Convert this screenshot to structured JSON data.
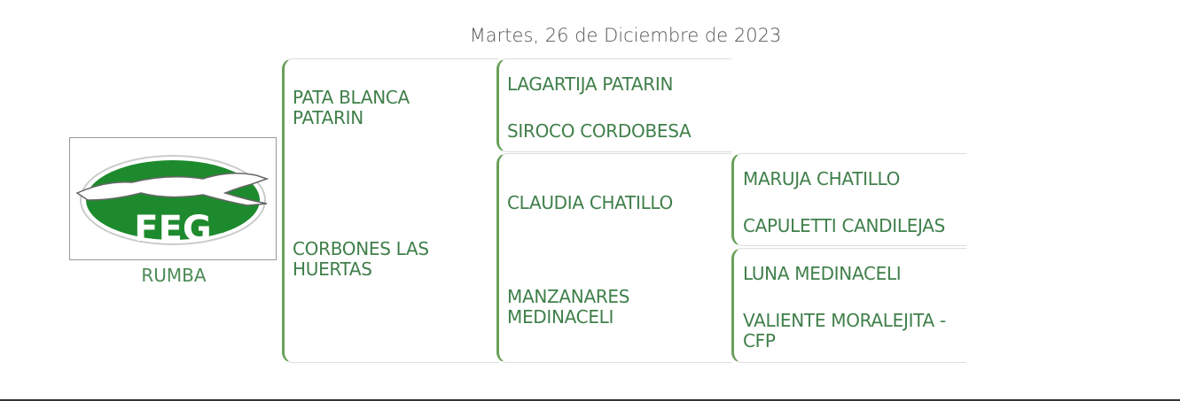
{
  "date": "Martes, 26 de Diciembre de 2023",
  "logo": {
    "text": "FEG",
    "icon": "greyhound-logo",
    "color": "#1e8a2e"
  },
  "dog": {
    "name": "RUMBA"
  },
  "pedigree": {
    "parents": [
      "PATA BLANCA PATARIN",
      "CORBONES LAS HUERTAS"
    ],
    "grandparents_sire": [
      "LAGARTIJA PATARIN",
      "SIROCO CORDOBESA"
    ],
    "grandparents_dam": [
      "CLAUDIA CHATILLO",
      "MANZANARES MEDINACELI"
    ],
    "great_grandparents_claudia": [
      "MARUJA CHATILLO",
      "CAPULETTI CANDILEJAS"
    ],
    "great_grandparents_manzanares": [
      "LUNA MEDINACELI",
      "VALIENTE MORALEJITA - CFP"
    ]
  },
  "colors": {
    "text": "#3f7f4a",
    "bracket": "#6aa05a"
  }
}
